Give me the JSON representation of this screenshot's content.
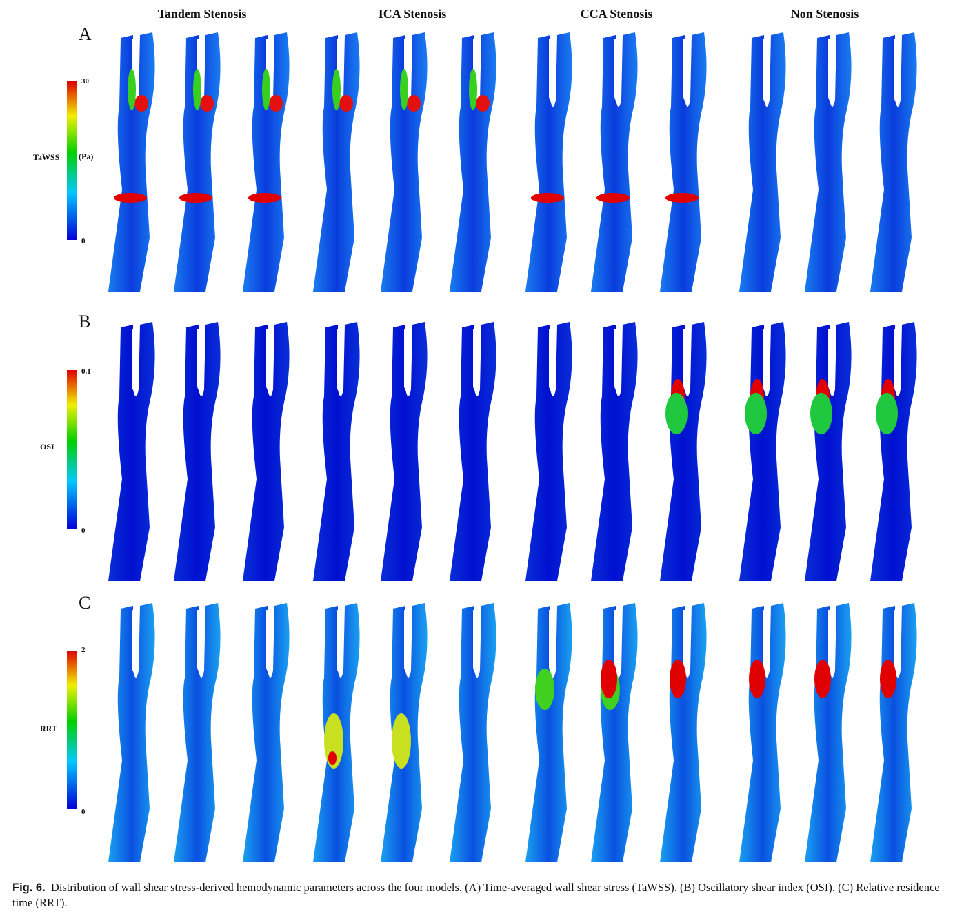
{
  "column_headers": [
    "Tandem Stenosis",
    "ICA Stenosis",
    "CCA Stenosis",
    "Non Stenosis"
  ],
  "panels": [
    {
      "letter": "A",
      "param": "TaWSS",
      "unit": "(Pa)",
      "max": "30",
      "min": "0"
    },
    {
      "letter": "B",
      "param": "OSI",
      "unit": "",
      "max": "0.1",
      "min": "0"
    },
    {
      "letter": "C",
      "param": "RRT",
      "unit": "",
      "max": "2",
      "min": "0"
    }
  ],
  "colormap": [
    "#0000d8",
    "#00c8ff",
    "#00d000",
    "#f0f000",
    "#e00000"
  ],
  "caption": {
    "label": "Fig. 6.",
    "text": "Distribution of wall shear stress-derived hemodynamic parameters across the four models. (A) Time-averaged wall shear stress (TaWSS). (B) Oscillatory shear index (OSI). (C) Relative residence time (RRT)."
  }
}
